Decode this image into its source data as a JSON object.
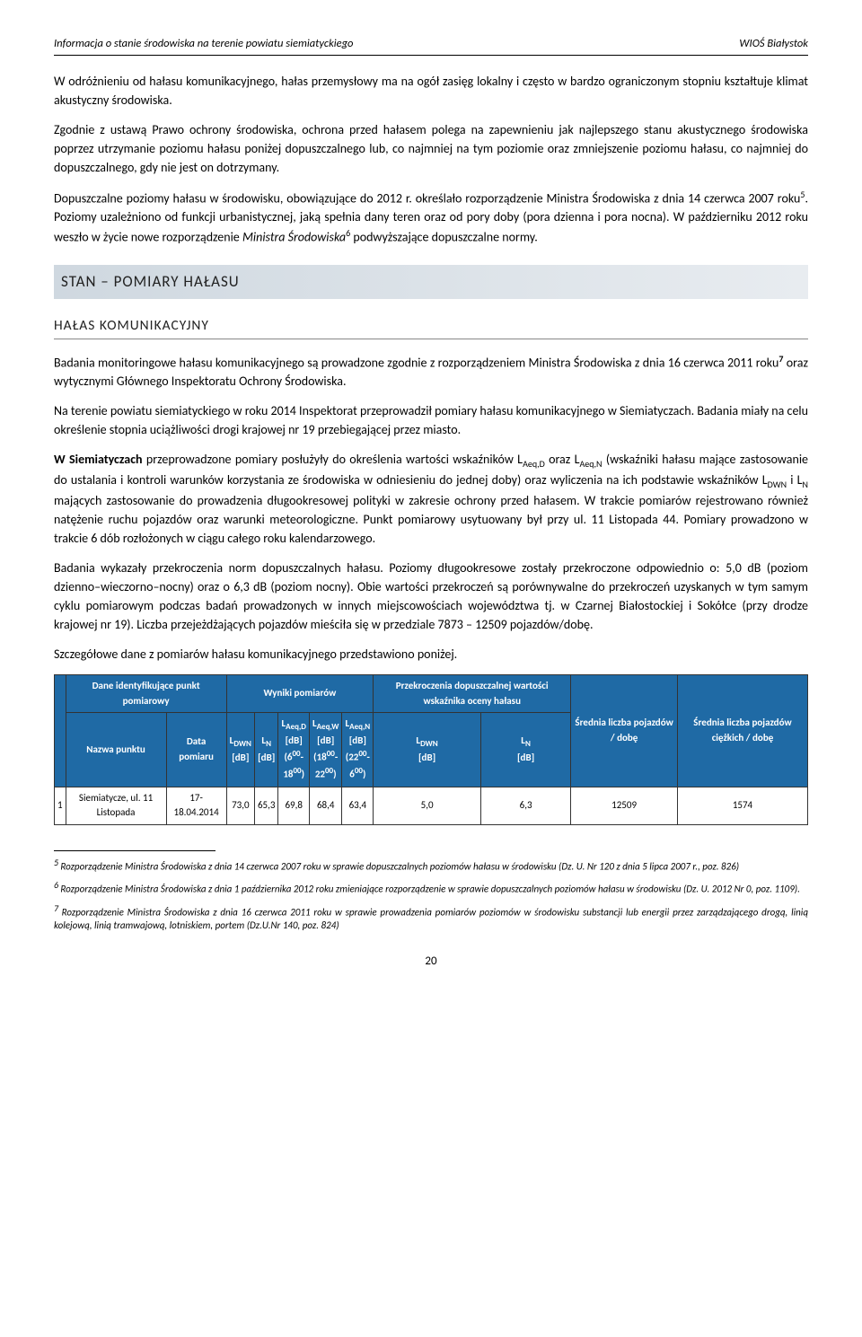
{
  "header": {
    "left": "Informacja o stanie środowiska na terenie powiatu siemiatyckiego",
    "right": "WIOŚ Białystok"
  },
  "paras": {
    "p1": "W odróżnieniu od hałasu komunikacyjnego, hałas przemysłowy ma na ogół zasięg lokalny i często w bardzo ograniczonym stopniu kształtuje klimat akustyczny środowiska.",
    "p2": "Zgodnie z ustawą Prawo ochrony środowiska, ochrona przed hałasem polega na zapewnieniu jak najlepszego stanu akustycznego środowiska poprzez utrzymanie poziomu hałasu poniżej dopuszczalnego lub, co najmniej na tym poziomie oraz zmniejszenie poziomu hałasu, co najmniej do dopuszczalnego, gdy nie jest on dotrzymany.",
    "p3a": "Dopuszczalne poziomy hałasu w środowisku, obowiązujące do 2012 r. określało rozporządzenie Ministra Środowiska z dnia 14 czerwca 2007 roku",
    "p3b": ". Poziomy uzależniono od funkcji urbanistycznej, jaką spełnia dany teren oraz od pory doby (pora dzienna i pora nocna). W październiku 2012 roku weszło w życie nowe rozporządzenie ",
    "p3c": "Ministra Środowiska",
    "p3d": " podwyższające dopuszczalne normy.",
    "sec": "STAN – POMIARY HAŁASU",
    "sub": "HAŁAS KOMUNIKACYJNY",
    "p4a": "Badania monitoringowe hałasu komunikacyjnego są prowadzone zgodnie z rozporządzeniem Ministra Środowiska z dnia 16 czerwca 2011 roku",
    "p4b": " oraz wytycznymi Głównego Inspektoratu Ochrony Środowiska.",
    "p5": "Na terenie powiatu siemiatyckiego w roku 2014 Inspektorat przeprowadził pomiary hałasu komunikacyjnego w Siemiatyczach. Badania miały na celu określenie stopnia uciążliwości drogi krajowej nr 19 przebiegającej przez miasto.",
    "p6a": "W Siemiatyczach",
    "p6b": "  przeprowadzone pomiary posłużyły do określenia wartości wskaźników L",
    "p6c": " oraz L",
    "p6d": " (wskaźniki hałasu mające zastosowanie do ustalania i kontroli warunków korzystania ze środowiska w odniesieniu do jednej doby) oraz wyliczenia na ich podstawie wskaźników L",
    "p6e": " i L",
    "p6f": " mających zastosowanie do prowadzenia długookresowej polityki w zakresie ochrony przed hałasem. W trakcie pomiarów rejestrowano również natężenie ruchu pojazdów oraz warunki meteorologiczne. Punkt pomiarowy usytuowany był przy ul. 11 Listopada 44. Pomiary prowadzono w trakcie 6 dób rozłożonych w ciągu całego roku kalendarzowego.",
    "p7": "Badania wykazały przekroczenia norm dopuszczalnych hałasu. Poziomy długookresowe zostały przekroczone odpowiednio o: 5,0 dB (poziom dzienno–wieczorno–nocny) oraz o 6,3 dB (poziom nocny). Obie wartości przekroczeń są porównywalne do przekroczeń uzyskanych w tym samym cyklu pomiarowym podczas badań prowadzonych w innych miejscowościach województwa tj. w Czarnej Białostockiej i Sokółce (przy drodze krajowej nr 19). Liczba przejeżdżających pojazdów mieściła się w przedziale 7873 – 12509 pojazdów/dobę.",
    "p8": "Szczegółowe dane z pomiarów hałasu komunikacyjnego przedstawiono poniżej."
  },
  "table": {
    "h": {
      "ident": "Dane identyfikujące punkt pomiarowy",
      "wyn": "Wyniki pomiarów",
      "przek": "Przekroczenia dopuszczalnej wartości wskaźnika oceny hałasu",
      "avg1": "Średnia liczba pojazdów / dobę",
      "avg2": "Średnia liczba pojazdów ciężkich / dobę",
      "nazwa": "Nazwa punktu",
      "data": "Data pomiaru"
    },
    "row": {
      "n": "1",
      "name": "Siemiatycze, ul. 11 Listopada",
      "date": "17-18.04.2014",
      "ldwn": "73,0",
      "ln": "65,3",
      "laeqd": "69,8",
      "laeqw": "68,4",
      "laeqn": "63,4",
      "pldwn": "5,0",
      "pln": "6,3",
      "v1": "12509",
      "v2": "1574"
    }
  },
  "footnotes": {
    "f5": "Rozporządzenie Ministra Środowiska z dnia 14 czerwca 2007 roku w sprawie dopuszczalnych poziomów hałasu w środowisku (Dz. U. Nr 120 z dnia 5 lipca 2007 r., poz. 826)",
    "f6": "Rozporządzenie Ministra Środowiska z dnia 1 października 2012 roku zmieniające rozporządzenie w sprawie dopuszczalnych poziomów hałasu w środowisku (Dz. U. 2012 Nr 0, poz. 1109).",
    "f7": "Rozporządzenie Ministra Środowiska z dnia 16 czerwca 2011 roku w sprawie prowadzenia pomiarów poziomów w środowisku substancji lub energii przez zarządzającego drogą, linią kolejową, linią tramwajową, lotniskiem, portem (Dz.U.Nr 140, poz. 824)"
  },
  "page": "20"
}
